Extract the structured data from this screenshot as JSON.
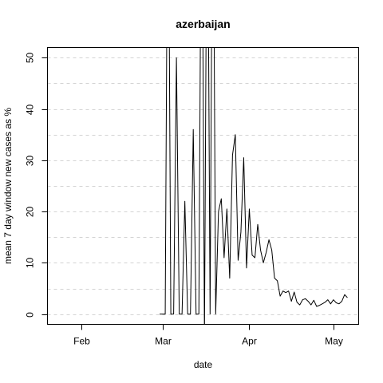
{
  "chart_data": {
    "type": "line",
    "title": "azerbaijan",
    "xlabel": "date",
    "ylabel": "mean  7  day window new cases as %",
    "x_ticks": [
      "Feb",
      "Mar",
      "Apr",
      "May"
    ],
    "x_tick_dates": [
      "2020-02-01",
      "2020-03-01",
      "2020-04-01",
      "2020-05-01"
    ],
    "y_ticks": [
      0,
      10,
      20,
      30,
      40,
      50
    ],
    "xlim": [
      "2020-01-20",
      "2020-05-10"
    ],
    "ylim": [
      -2,
      52
    ],
    "grid": "horizontal dashed, every 5",
    "series": [
      {
        "color": "#000000",
        "points": [
          [
            "2020-02-29",
            0
          ],
          [
            "2020-03-01",
            0
          ],
          [
            "2020-03-02",
            0
          ],
          [
            "2020-03-03",
            100
          ],
          [
            "2020-03-04",
            0
          ],
          [
            "2020-03-05",
            0
          ],
          [
            "2020-03-06",
            50
          ],
          [
            "2020-03-07",
            0
          ],
          [
            "2020-03-08",
            0
          ],
          [
            "2020-03-09",
            22
          ],
          [
            "2020-03-10",
            0
          ],
          [
            "2020-03-11",
            0
          ],
          [
            "2020-03-12",
            36
          ],
          [
            "2020-03-13",
            0
          ],
          [
            "2020-03-14",
            0
          ],
          [
            "2020-03-15",
            100
          ],
          [
            "2020-03-16",
            -5
          ],
          [
            "2020-03-17",
            100
          ],
          [
            "2020-03-18",
            0
          ],
          [
            "2020-03-19",
            100
          ],
          [
            "2020-03-20",
            0
          ],
          [
            "2020-03-21",
            20
          ],
          [
            "2020-03-22",
            22.5
          ],
          [
            "2020-03-23",
            11
          ],
          [
            "2020-03-24",
            20.5
          ],
          [
            "2020-03-25",
            7
          ],
          [
            "2020-03-26",
            31
          ],
          [
            "2020-03-27",
            35
          ],
          [
            "2020-03-28",
            10.5
          ],
          [
            "2020-03-29",
            16
          ],
          [
            "2020-03-30",
            30.5
          ],
          [
            "2020-03-31",
            9
          ],
          [
            "2020-04-01",
            20.5
          ],
          [
            "2020-04-02",
            11.5
          ],
          [
            "2020-04-03",
            11
          ],
          [
            "2020-04-04",
            17.5
          ],
          [
            "2020-04-05",
            12.5
          ],
          [
            "2020-04-06",
            10
          ],
          [
            "2020-04-07",
            12
          ],
          [
            "2020-04-08",
            14.5
          ],
          [
            "2020-04-09",
            12.5
          ],
          [
            "2020-04-10",
            7
          ],
          [
            "2020-04-11",
            6.5
          ],
          [
            "2020-04-12",
            3.5
          ],
          [
            "2020-04-13",
            4.5
          ],
          [
            "2020-04-14",
            4.2
          ],
          [
            "2020-04-15",
            4.5
          ],
          [
            "2020-04-16",
            2.5
          ],
          [
            "2020-04-17",
            4.3
          ],
          [
            "2020-04-18",
            2.3
          ],
          [
            "2020-04-19",
            1.8
          ],
          [
            "2020-04-20",
            2.8
          ],
          [
            "2020-04-21",
            3
          ],
          [
            "2020-04-22",
            2.5
          ],
          [
            "2020-04-23",
            1.8
          ],
          [
            "2020-04-24",
            2.7
          ],
          [
            "2020-04-25",
            1.5
          ],
          [
            "2020-04-26",
            1.7
          ],
          [
            "2020-04-27",
            2
          ],
          [
            "2020-04-28",
            2.3
          ],
          [
            "2020-04-29",
            2.8
          ],
          [
            "2020-04-30",
            2
          ],
          [
            "2020-05-01",
            2.8
          ],
          [
            "2020-05-02",
            2.2
          ],
          [
            "2020-05-03",
            2
          ],
          [
            "2020-05-04",
            2.5
          ],
          [
            "2020-05-05",
            3.8
          ],
          [
            "2020-05-06",
            3.2
          ]
        ]
      }
    ]
  }
}
